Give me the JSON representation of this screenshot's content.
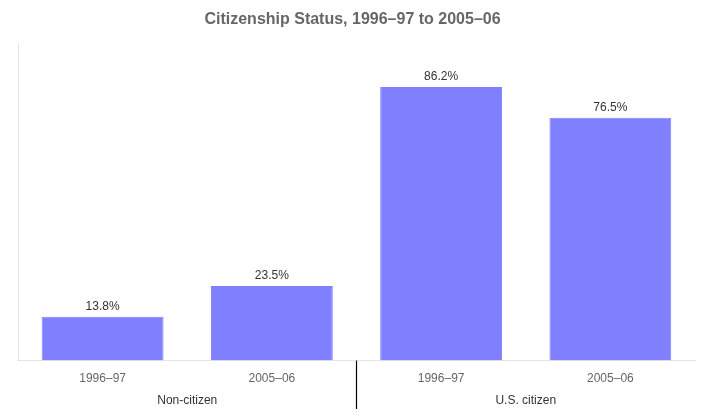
{
  "chart_data": {
    "type": "bar",
    "title": "Citizenship Status, 1996–97 to 2005–06",
    "categories": [
      "1996–97",
      "2005–06",
      "1996–97",
      "2005–06"
    ],
    "values": [
      13.8,
      23.5,
      86.2,
      76.5
    ],
    "value_labels": [
      "13.8%",
      "23.5%",
      "86.2%",
      "76.5%"
    ],
    "data_labels": true,
    "color": "#8080ff",
    "group_labels": [
      "Non-citizen",
      "U.S. citizen"
    ],
    "ylim": [
      0,
      100
    ],
    "tick_labels": "x",
    "grid": false
  }
}
